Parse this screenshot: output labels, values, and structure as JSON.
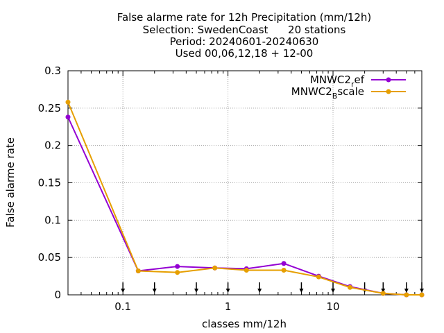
{
  "chart_data": {
    "type": "line",
    "title_lines": [
      "False alarme rate  for 12h Precipitation (mm/12h)",
      "Selection: SwedenCoast      20 stations",
      "Period: 20240601-20240630",
      "Used 00,06,12,18 + 12-00"
    ],
    "xlabel": "classes mm/12h",
    "ylabel": "False alarme rate",
    "xscale": "log",
    "xlim": [
      0.03,
      70
    ],
    "ylim": [
      0,
      0.3
    ],
    "yticks": [
      0,
      0.05,
      0.1,
      0.15,
      0.2,
      0.25,
      0.3
    ],
    "ytick_labels": [
      "0",
      "0.05",
      "0.1",
      "0.15",
      "0.2",
      "0.25",
      "0.3"
    ],
    "xticks": [
      0.1,
      1,
      10
    ],
    "xtick_labels": [
      "0.1",
      "1",
      "10"
    ],
    "grid": true,
    "legend_position": "top-right",
    "threshold_arrows": [
      0.1,
      0.2,
      0.5,
      1,
      2,
      5,
      10,
      20,
      30,
      50,
      70
    ],
    "x": [
      0.03,
      0.14,
      0.33,
      0.75,
      1.5,
      3.4,
      7.3,
      14.5,
      30,
      50,
      70
    ],
    "series": [
      {
        "name": "MNWC2_ref",
        "legend_base": "MNWC2",
        "legend_sub": "r",
        "legend_rest": "ef",
        "color": "#9400d3",
        "values": [
          0.238,
          0.032,
          0.038,
          0.036,
          0.035,
          0.042,
          0.025,
          0.011,
          0.002,
          0.0,
          0.0
        ]
      },
      {
        "name": "MNWC2_Bscale",
        "legend_base": "MNWC2",
        "legend_sub": "B",
        "legend_rest": "scale",
        "color": "#e69f00",
        "values": [
          0.258,
          0.032,
          0.03,
          0.036,
          0.033,
          0.033,
          0.024,
          0.01,
          0.002,
          0.0,
          0.0
        ]
      }
    ]
  }
}
